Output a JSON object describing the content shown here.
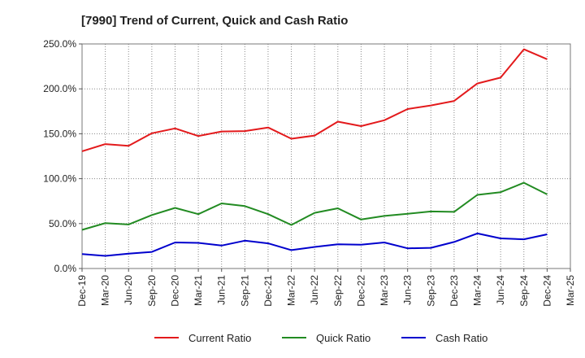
{
  "chart_data": {
    "type": "line",
    "title": "[7990]  Trend of Current, Quick and Cash Ratio",
    "xlabel": "",
    "ylabel": "",
    "ylim": [
      0,
      250
    ],
    "yticks": [
      0,
      50,
      100,
      150,
      200,
      250
    ],
    "ytick_labels": [
      "0.0%",
      "50.0%",
      "100.0%",
      "150.0%",
      "200.0%",
      "250.0%"
    ],
    "xtick_labels": [
      "Dec-19",
      "Mar-20",
      "Jun-20",
      "Sep-20",
      "Dec-20",
      "Mar-21",
      "Jun-21",
      "Sep-21",
      "Dec-21",
      "Mar-22",
      "Jun-22",
      "Sep-22",
      "Dec-22",
      "Mar-23",
      "Jun-23",
      "Sep-23",
      "Dec-23",
      "Mar-24",
      "Jun-24",
      "Sep-24",
      "Dec-24",
      "Mar-25"
    ],
    "categories": [
      "Dec-19",
      "Mar-20",
      "Jun-20",
      "Sep-20",
      "Dec-20",
      "Mar-21",
      "Jun-21",
      "Sep-21",
      "Dec-21",
      "Mar-22",
      "Jun-22",
      "Sep-22",
      "Dec-22",
      "Mar-23",
      "Jun-23",
      "Sep-23",
      "Dec-23",
      "Mar-24",
      "Jun-24",
      "Sep-24",
      "Dec-24"
    ],
    "grid": true,
    "legend_position": "bottom",
    "series": [
      {
        "name": "Current Ratio",
        "color": "#e31a1c",
        "values": [
          130.5,
          138.5,
          136.5,
          150.5,
          156.0,
          147.5,
          152.5,
          153.0,
          157.0,
          144.5,
          148.0,
          163.5,
          158.5,
          165.0,
          177.5,
          181.5,
          186.5,
          206.0,
          212.5,
          244.0,
          233.0
        ]
      },
      {
        "name": "Quick Ratio",
        "color": "#228b22",
        "values": [
          43.0,
          50.5,
          49.0,
          59.5,
          67.5,
          60.5,
          72.5,
          69.5,
          60.5,
          48.5,
          62.0,
          67.0,
          54.5,
          58.5,
          61.0,
          63.5,
          63.0,
          82.0,
          85.0,
          95.5,
          82.5
        ]
      },
      {
        "name": "Cash Ratio",
        "color": "#0000cd",
        "values": [
          16.0,
          14.0,
          16.5,
          18.5,
          29.0,
          28.5,
          25.5,
          31.0,
          28.0,
          20.5,
          24.0,
          27.0,
          26.5,
          29.0,
          22.5,
          23.0,
          29.5,
          39.0,
          33.5,
          32.5,
          38.0
        ]
      }
    ]
  }
}
